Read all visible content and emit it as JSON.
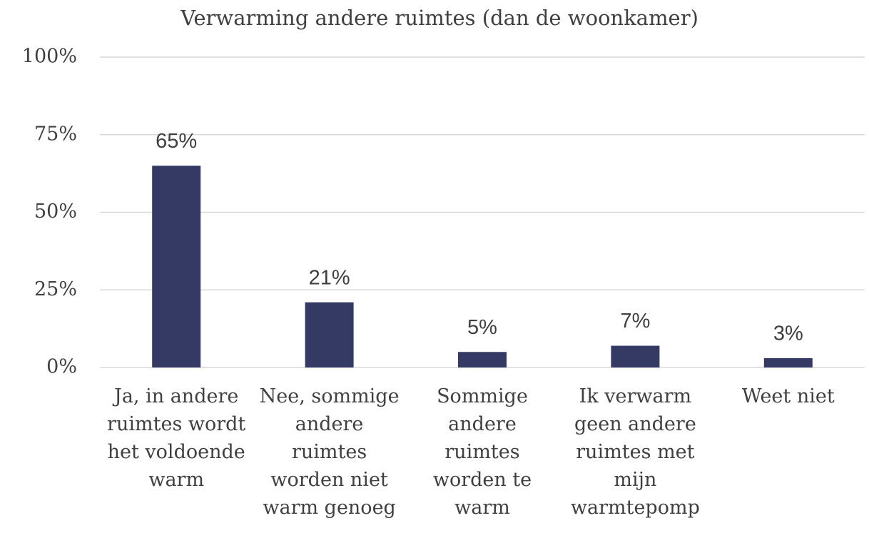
{
  "chart_data": {
    "type": "bar",
    "title": "Verwarming andere ruimtes (dan de woonkamer)",
    "categories": [
      "Ja, in andere ruimtes wordt het voldoende warm",
      "Nee, sommige andere ruimtes worden niet warm genoeg",
      "Sommige andere ruimtes worden te warm",
      "Ik verwarm geen andere ruimtes met mijn warmtepomp",
      "Weet niet"
    ],
    "values": [
      65,
      21,
      5,
      7,
      3
    ],
    "value_labels": [
      "65%",
      "21%",
      "5%",
      "7%",
      "3%"
    ],
    "color": "#353a64",
    "ylim": [
      0,
      100
    ],
    "yticks": [
      {
        "value": 0,
        "label": "0%"
      },
      {
        "value": 25,
        "label": "25%"
      },
      {
        "value": 50,
        "label": "50%"
      },
      {
        "value": 75,
        "label": "75%"
      },
      {
        "value": 100,
        "label": "100%"
      }
    ],
    "grid": true
  }
}
